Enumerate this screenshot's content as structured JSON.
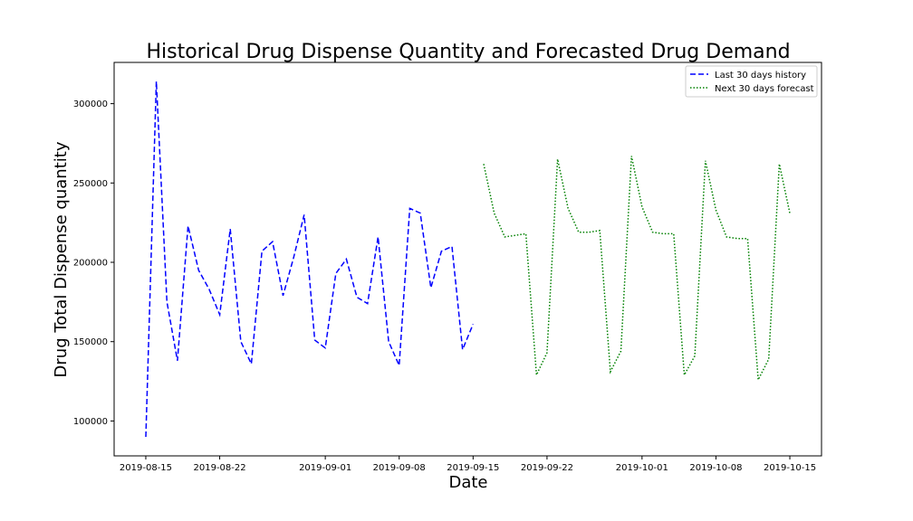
{
  "chart_data": {
    "type": "line",
    "title": "Historical Drug Dispense Quantity and Forecasted Drug Demand",
    "xlabel": "Date",
    "ylabel": "Drug Total Dispense quantity",
    "xlim": [
      "2019-08-12",
      "2019-10-18"
    ],
    "ylim": [
      78000,
      326000
    ],
    "x_ticks": [
      "2019-08-15",
      "2019-08-22",
      "2019-09-01",
      "2019-09-08",
      "2019-09-15",
      "2019-09-22",
      "2019-10-01",
      "2019-10-08",
      "2019-10-15"
    ],
    "y_ticks": [
      100000,
      150000,
      200000,
      250000,
      300000
    ],
    "grid": false,
    "legend_position": "top-right",
    "series": [
      {
        "name": "Last 30 days history",
        "color": "#0000ff",
        "style": "dashed",
        "x": [
          "2019-08-15",
          "2019-08-16",
          "2019-08-17",
          "2019-08-18",
          "2019-08-19",
          "2019-08-20",
          "2019-08-21",
          "2019-08-22",
          "2019-08-23",
          "2019-08-24",
          "2019-08-25",
          "2019-08-26",
          "2019-08-27",
          "2019-08-28",
          "2019-08-29",
          "2019-08-30",
          "2019-08-31",
          "2019-09-01",
          "2019-09-02",
          "2019-09-03",
          "2019-09-04",
          "2019-09-05",
          "2019-09-06",
          "2019-09-07",
          "2019-09-08",
          "2019-09-09",
          "2019-09-10",
          "2019-09-11",
          "2019-09-12",
          "2019-09-13",
          "2019-09-14",
          "2019-09-15"
        ],
        "values": [
          90000,
          314000,
          175000,
          138000,
          223000,
          195000,
          183000,
          167000,
          221000,
          150000,
          136000,
          207000,
          213000,
          179000,
          203000,
          230000,
          151000,
          146000,
          193000,
          202000,
          178000,
          174000,
          216000,
          150000,
          135000,
          234000,
          231000,
          184000,
          207000,
          210000,
          145000,
          161000
        ]
      },
      {
        "name": "Next 30 days forecast",
        "color": "#008000",
        "style": "dotted",
        "x": [
          "2019-09-16",
          "2019-09-17",
          "2019-09-18",
          "2019-09-19",
          "2019-09-20",
          "2019-09-21",
          "2019-09-22",
          "2019-09-23",
          "2019-09-24",
          "2019-09-25",
          "2019-09-26",
          "2019-09-27",
          "2019-09-28",
          "2019-09-29",
          "2019-09-30",
          "2019-10-01",
          "2019-10-02",
          "2019-10-03",
          "2019-10-04",
          "2019-10-05",
          "2019-10-06",
          "2019-10-07",
          "2019-10-08",
          "2019-10-09",
          "2019-10-10",
          "2019-10-11",
          "2019-10-12",
          "2019-10-13",
          "2019-10-14",
          "2019-10-15"
        ],
        "values": [
          262000,
          231000,
          216000,
          217000,
          218000,
          129000,
          143000,
          265000,
          234000,
          219000,
          219000,
          220000,
          131000,
          144000,
          267000,
          235000,
          219000,
          218000,
          218000,
          129000,
          141000,
          264000,
          233000,
          216000,
          215000,
          215000,
          126000,
          139000,
          262000,
          231000
        ]
      }
    ]
  }
}
